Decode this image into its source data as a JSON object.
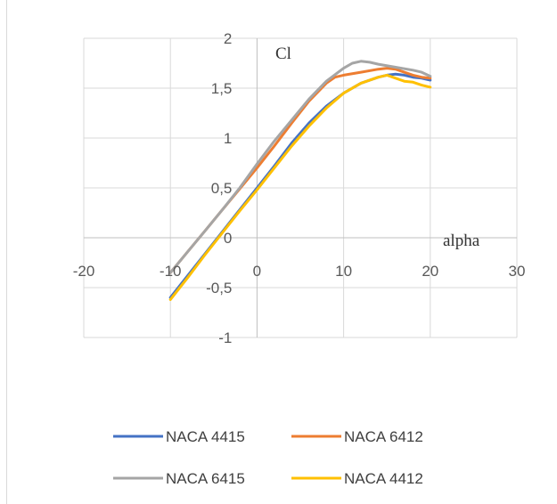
{
  "chart_data": {
    "type": "line",
    "title": "",
    "xlabel": "alpha",
    "ylabel": "Cl",
    "xlim": [
      -20,
      30
    ],
    "ylim": [
      -1,
      2
    ],
    "x_ticks": [
      "-20",
      "-10",
      "0",
      "10",
      "20",
      "30"
    ],
    "y_ticks": [
      "-1",
      "-0,5",
      "0",
      "0,5",
      "1",
      "1,5",
      "2"
    ],
    "x_tick_values": [
      -20,
      -10,
      0,
      10,
      20,
      30
    ],
    "y_tick_values": [
      -1,
      -0.5,
      0,
      0.5,
      1,
      1.5,
      2
    ],
    "grid": true,
    "legend_position": "bottom",
    "series": [
      {
        "name": "NACA 4415",
        "color": "#4472C4",
        "x": [
          -10,
          -8,
          -6,
          -4,
          -2,
          0,
          2,
          4,
          6,
          8,
          10,
          12,
          14,
          15,
          16,
          17,
          18,
          19,
          20
        ],
        "y": [
          -0.6,
          -0.38,
          -0.16,
          0.06,
          0.28,
          0.5,
          0.72,
          0.95,
          1.15,
          1.32,
          1.45,
          1.55,
          1.61,
          1.63,
          1.64,
          1.63,
          1.61,
          1.6,
          1.58
        ]
      },
      {
        "name": "NACA 6412",
        "color": "#ED7D31",
        "x": [
          -10,
          -8,
          -6,
          -4,
          -2,
          0,
          2,
          4,
          6,
          8,
          9,
          10,
          12,
          14,
          15,
          16,
          17,
          18,
          19,
          20
        ],
        "y": [
          -0.35,
          -0.14,
          0.07,
          0.28,
          0.49,
          0.7,
          0.92,
          1.15,
          1.37,
          1.55,
          1.61,
          1.63,
          1.66,
          1.69,
          1.7,
          1.69,
          1.66,
          1.63,
          1.61,
          1.6
        ]
      },
      {
        "name": "NACA 6415",
        "color": "#A5A5A5",
        "x": [
          -10,
          -8,
          -6,
          -4,
          -2,
          0,
          2,
          4,
          6,
          8,
          10,
          11,
          12,
          13,
          14,
          16,
          18,
          19,
          20
        ],
        "y": [
          -0.35,
          -0.14,
          0.07,
          0.28,
          0.5,
          0.74,
          0.97,
          1.18,
          1.39,
          1.57,
          1.7,
          1.75,
          1.77,
          1.76,
          1.74,
          1.71,
          1.68,
          1.66,
          1.62
        ]
      },
      {
        "name": "NACA 4412",
        "color": "#FFC000",
        "x": [
          -10,
          -8,
          -6,
          -4,
          -2,
          0,
          2,
          4,
          6,
          8,
          10,
          12,
          14,
          15,
          16,
          17,
          18,
          19,
          20
        ],
        "y": [
          -0.62,
          -0.4,
          -0.17,
          0.05,
          0.27,
          0.48,
          0.7,
          0.92,
          1.12,
          1.3,
          1.45,
          1.55,
          1.61,
          1.63,
          1.6,
          1.57,
          1.56,
          1.53,
          1.51
        ]
      }
    ]
  }
}
